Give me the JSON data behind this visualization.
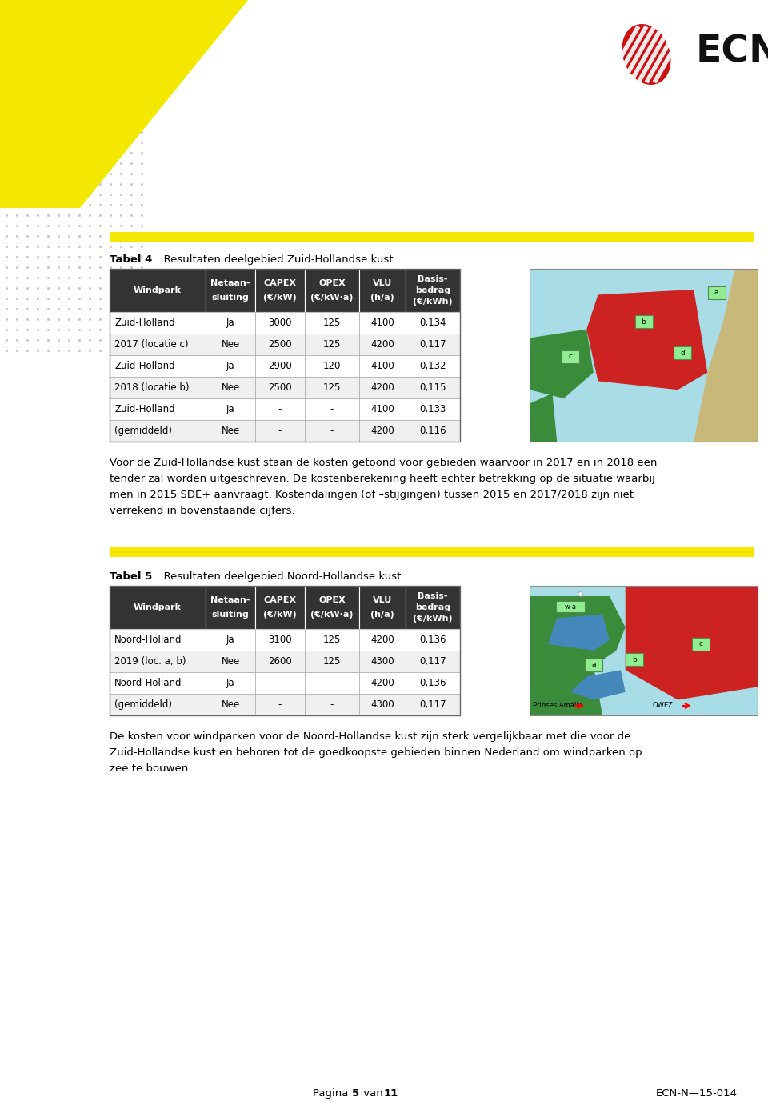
{
  "page_bg": "#ffffff",
  "yellow_color": "#f5e800",
  "table_header_bg": "#333333",
  "table_header_fg": "#ffffff",
  "table_row_bg": "#ffffff",
  "table_border": "#aaaaaa",
  "tabel4_title_bold": "Tabel 4",
  "tabel4_title_rest": ": Resultaten deelgebied Zuid-Hollandse kust",
  "tabel4_headers": [
    "Windpark",
    "Netaan-\nsluiting",
    "CAPEX\n(€/kW)",
    "OPEX\n(€/kW·a)",
    "VLU\n(h/a)",
    "Basis-\nbedrag\n(€/kWh)"
  ],
  "tabel4_rows": [
    [
      "Zuid-Holland",
      "Ja",
      "3000",
      "125",
      "4100",
      "0,134"
    ],
    [
      "2017 (locatie c)",
      "Nee",
      "2500",
      "125",
      "4200",
      "0,117"
    ],
    [
      "Zuid-Holland",
      "Ja",
      "2900",
      "120",
      "4100",
      "0,132"
    ],
    [
      "2018 (locatie b)",
      "Nee",
      "2500",
      "125",
      "4200",
      "0,115"
    ],
    [
      "Zuid-Holland",
      "Ja",
      "-",
      "-",
      "4100",
      "0,133"
    ],
    [
      "(gemiddeld)",
      "Nee",
      "-",
      "-",
      "4200",
      "0,116"
    ]
  ],
  "tabel5_title_bold": "Tabel 5",
  "tabel5_title_rest": ": Resultaten deelgebied Noord-Hollandse kust",
  "tabel5_headers": [
    "Windpark",
    "Netaan-\nsluiting",
    "CAPEX\n(€/kW)",
    "OPEX\n(€/kW·a)",
    "VLU\n(h/a)",
    "Basis-\nbedrag\n(€/kWh)"
  ],
  "tabel5_rows": [
    [
      "Noord-Holland",
      "Ja",
      "3100",
      "125",
      "4200",
      "0,136"
    ],
    [
      "2019 (loc. a, b)",
      "Nee",
      "2600",
      "125",
      "4300",
      "0,117"
    ],
    [
      "Noord-Holland",
      "Ja",
      "-",
      "-",
      "4200",
      "0,136"
    ],
    [
      "(gemiddeld)",
      "Nee",
      "-",
      "-",
      "4300",
      "0,117"
    ]
  ],
  "paragraph1": "Voor de Zuid-Hollandse kust staan de kosten getoond voor gebieden waarvoor in 2017 en in 2018 een tender zal worden uitgeschreven. De kostenberekening heeft echter betrekking op de situatie waarbij men in 2015 SDE+ aanvraagt. Kostendalingen (of –stijgingen) tussen 2015 en 2017/2018 zijn niet verrekend in bovenstaande cijfers.",
  "paragraph2": "De kosten voor windparken voor de Noord-Hollandse kust zijn sterk vergelijkbaar met die voor de Zuid-Hollandse kust en behoren tot de goedkoopste gebieden binnen Nederland om windparken op zee te bouwen.",
  "footer_left": "Pagina ",
  "footer_left_bold": "5",
  "footer_left_end": " van ",
  "footer_left_bold2": "11",
  "footer_right": "ECN-N—15-014"
}
